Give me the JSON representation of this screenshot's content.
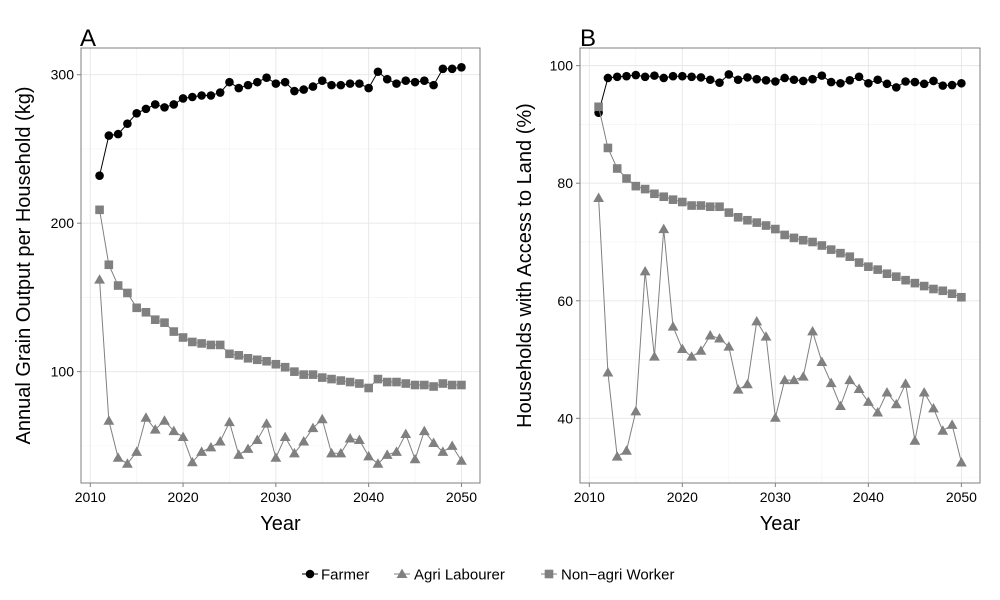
{
  "chart_data": [
    {
      "panel_label": "A",
      "type": "line",
      "xlabel": "Year",
      "ylabel": "Annual Grain Output per Household (kg)",
      "xlim": [
        2009,
        2052
      ],
      "ylim": [
        25,
        318
      ],
      "x_ticks": [
        2010,
        2020,
        2030,
        2040,
        2050
      ],
      "y_ticks": [
        100,
        200,
        300
      ],
      "grid": true,
      "x": [
        2011,
        2012,
        2013,
        2014,
        2015,
        2016,
        2017,
        2018,
        2019,
        2020,
        2021,
        2022,
        2023,
        2024,
        2025,
        2026,
        2027,
        2028,
        2029,
        2030,
        2031,
        2032,
        2033,
        2034,
        2035,
        2036,
        2037,
        2038,
        2039,
        2040,
        2041,
        2042,
        2043,
        2044,
        2045,
        2046,
        2047,
        2048,
        2049,
        2050
      ],
      "series": [
        {
          "name": "Farmer",
          "marker": "circle",
          "color": "#000000",
          "values": [
            232,
            259,
            260,
            267,
            274,
            277,
            280,
            278,
            280,
            284,
            285,
            286,
            286,
            288,
            295,
            291,
            293,
            295,
            298,
            294,
            295,
            289,
            290,
            292,
            296,
            293,
            293,
            294,
            294,
            291,
            302,
            297,
            294,
            296,
            295,
            296,
            293,
            304,
            304,
            305
          ]
        },
        {
          "name": "Agri Labourer",
          "marker": "triangle",
          "color": "#808080",
          "values": [
            162,
            67,
            42,
            38,
            46,
            69,
            61,
            67,
            60,
            56,
            39,
            46,
            49,
            53,
            66,
            44,
            48,
            54,
            65,
            42,
            56,
            45,
            53,
            62,
            68,
            45,
            45,
            55,
            54,
            43,
            38,
            44,
            46,
            58,
            41,
            60,
            52,
            46,
            50,
            40
          ]
        },
        {
          "name": "Non-agri Worker",
          "marker": "square",
          "color": "#808080",
          "values": [
            209,
            172,
            158,
            153,
            143,
            140,
            135,
            133,
            127,
            123,
            120,
            119,
            118,
            118,
            112,
            111,
            109,
            108,
            107,
            105,
            103,
            100,
            98,
            98,
            96,
            95,
            94,
            93,
            92,
            89,
            95,
            93,
            93,
            92,
            91,
            91,
            90,
            92,
            91,
            91
          ]
        }
      ]
    },
    {
      "panel_label": "B",
      "type": "line",
      "xlabel": "Year",
      "ylabel": "Households with Access to Land (%)",
      "xlim": [
        2009,
        2052
      ],
      "ylim": [
        29,
        103
      ],
      "x_ticks": [
        2010,
        2020,
        2030,
        2040,
        2050
      ],
      "y_ticks": [
        40,
        60,
        80,
        100
      ],
      "grid": true,
      "x": [
        2011,
        2012,
        2013,
        2014,
        2015,
        2016,
        2017,
        2018,
        2019,
        2020,
        2021,
        2022,
        2023,
        2024,
        2025,
        2026,
        2027,
        2028,
        2029,
        2030,
        2031,
        2032,
        2033,
        2034,
        2035,
        2036,
        2037,
        2038,
        2039,
        2040,
        2041,
        2042,
        2043,
        2044,
        2045,
        2046,
        2047,
        2048,
        2049,
        2050
      ],
      "series": [
        {
          "name": "Farmer",
          "marker": "circle",
          "color": "#000000",
          "values": [
            92,
            97.9,
            98.1,
            98.2,
            98.4,
            98.1,
            98.3,
            97.9,
            98.2,
            98.2,
            98.1,
            98,
            97.6,
            97.1,
            98.5,
            97.6,
            98,
            97.7,
            97.5,
            97.3,
            97.9,
            97.6,
            97.4,
            97.7,
            98.3,
            97.2,
            97,
            97.5,
            98.1,
            97,
            97.6,
            96.9,
            96.3,
            97.3,
            97.2,
            96.9,
            97.4,
            96.6,
            96.7,
            97
          ]
        },
        {
          "name": "Agri Labourer",
          "marker": "triangle",
          "color": "#808080",
          "values": [
            77.5,
            47.8,
            33.5,
            34.5,
            41.2,
            65,
            50.5,
            72.2,
            55.6,
            51.8,
            50.5,
            51.5,
            54.1,
            53.6,
            52.2,
            44.9,
            45.8,
            56.5,
            53.9,
            40.1,
            46.5,
            46.5,
            47.1,
            54.8,
            49.6,
            46,
            42.1,
            46.5,
            45,
            42.8,
            41,
            44.4,
            42.4,
            45.9,
            36.2,
            44.4,
            41.7,
            37.9,
            38.9,
            32.5
          ]
        },
        {
          "name": "Non-agri Worker",
          "marker": "square",
          "color": "#808080",
          "values": [
            93,
            86,
            82.5,
            80.8,
            79.5,
            79,
            78.2,
            77.7,
            77.2,
            76.8,
            76.2,
            76.2,
            76,
            76,
            75,
            74.2,
            73.7,
            73.3,
            72.8,
            72.2,
            71.2,
            70.7,
            70.3,
            70,
            69.4,
            68.7,
            68.1,
            67.5,
            66.5,
            65.8,
            65.3,
            64.6,
            64.1,
            63.5,
            63,
            62.5,
            62,
            61.7,
            61.2,
            60.6
          ]
        }
      ]
    }
  ],
  "legend": {
    "placement": "bottom",
    "items": [
      {
        "label": "Farmer",
        "marker": "circle",
        "color": "#000000"
      },
      {
        "label": "Agri Labourer",
        "marker": "triangle",
        "color": "#808080"
      },
      {
        "label": "Non−agri Worker",
        "marker": "square",
        "color": "#808080"
      }
    ]
  }
}
